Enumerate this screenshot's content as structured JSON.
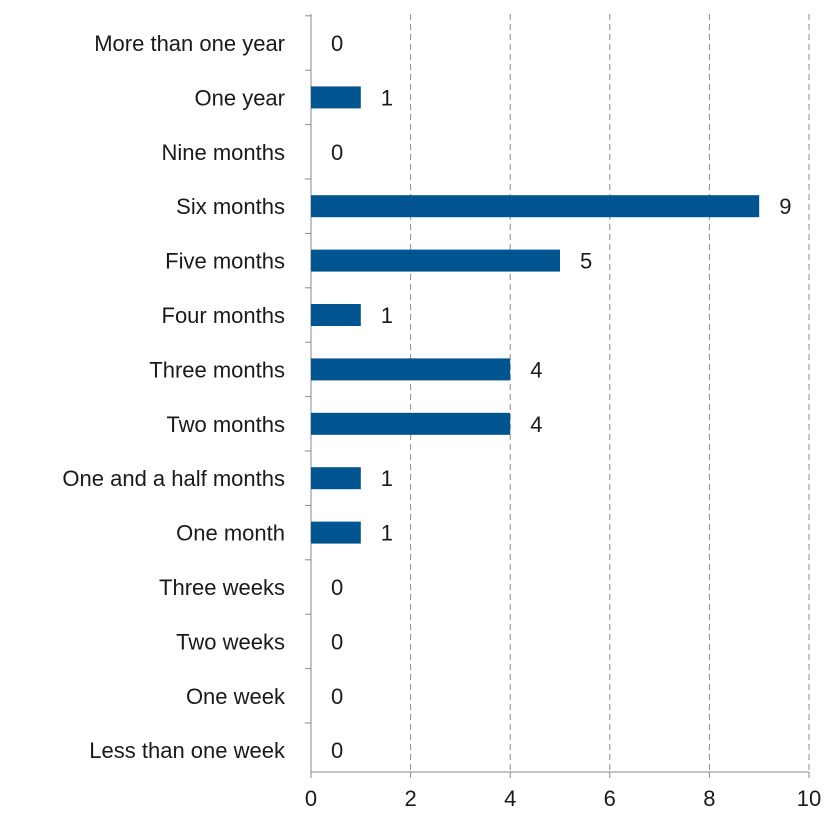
{
  "chart_data": {
    "type": "bar",
    "orientation": "horizontal",
    "categories": [
      "More than one year",
      "One year",
      "Nine months",
      "Six months",
      "Five months",
      "Four months",
      "Three months",
      "Two months",
      "One and a half months",
      "One month",
      "Three weeks",
      "Two weeks",
      "One week",
      "Less than one week"
    ],
    "values": [
      0,
      1,
      0,
      9,
      5,
      1,
      4,
      4,
      1,
      1,
      0,
      0,
      0,
      0
    ],
    "xlim": [
      0,
      10
    ],
    "x_ticks": [
      0,
      2,
      4,
      6,
      8,
      10
    ],
    "title": "",
    "xlabel": "",
    "ylabel": "",
    "grid": "vertical dashed",
    "legend": "none",
    "bar_color": "#00548f"
  }
}
